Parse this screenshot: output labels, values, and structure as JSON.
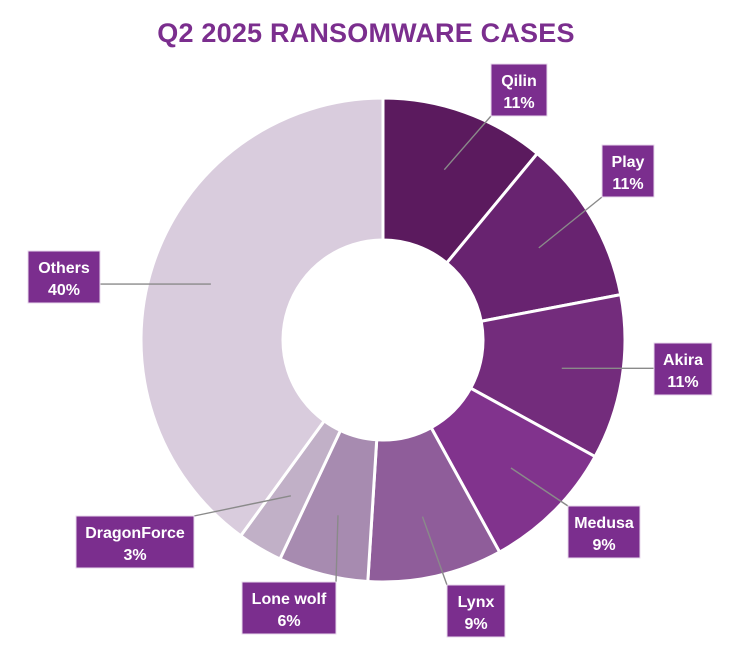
{
  "chart_data": {
    "type": "pie",
    "title": "Q2 2025 RANSOMWARE CASES",
    "categories": [
      "Qilin",
      "Play",
      "Akira",
      "Medusa",
      "Lynx",
      "Lone wolf",
      "DragonForce",
      "Others"
    ],
    "values": [
      11,
      11,
      11,
      9,
      9,
      6,
      3,
      40
    ],
    "value_labels": [
      "11%",
      "11%",
      "11%",
      "9%",
      "9%",
      "6%",
      "3%",
      "40%"
    ],
    "donut": true,
    "colors": [
      "#5b1a5e",
      "#682370",
      "#732c7c",
      "#81338d",
      "#8f5d9a",
      "#a78bb0",
      "#c1b0c7",
      "#d9ccdd"
    ],
    "label_box_color": "#7b2e8e",
    "label_text_color": "#ffffff"
  }
}
